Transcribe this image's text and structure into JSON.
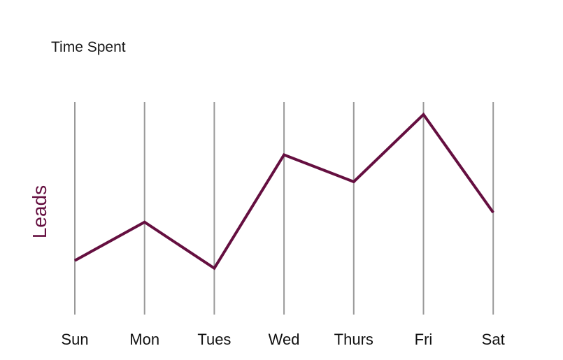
{
  "chart_data": {
    "type": "line",
    "title": "Time Spent",
    "xlabel": "",
    "ylabel": "Leads",
    "categories": [
      "Sun",
      "Mon",
      "Tues",
      "Wed",
      "Thurs",
      "Fri",
      "Sat"
    ],
    "series": [
      {
        "values": [
          19,
          39,
          15,
          74,
          60,
          95,
          44
        ]
      }
    ],
    "ylim": [
      0,
      100
    ],
    "grid": "vertical",
    "line_color": "#650f40",
    "grid_color": "#999999"
  }
}
